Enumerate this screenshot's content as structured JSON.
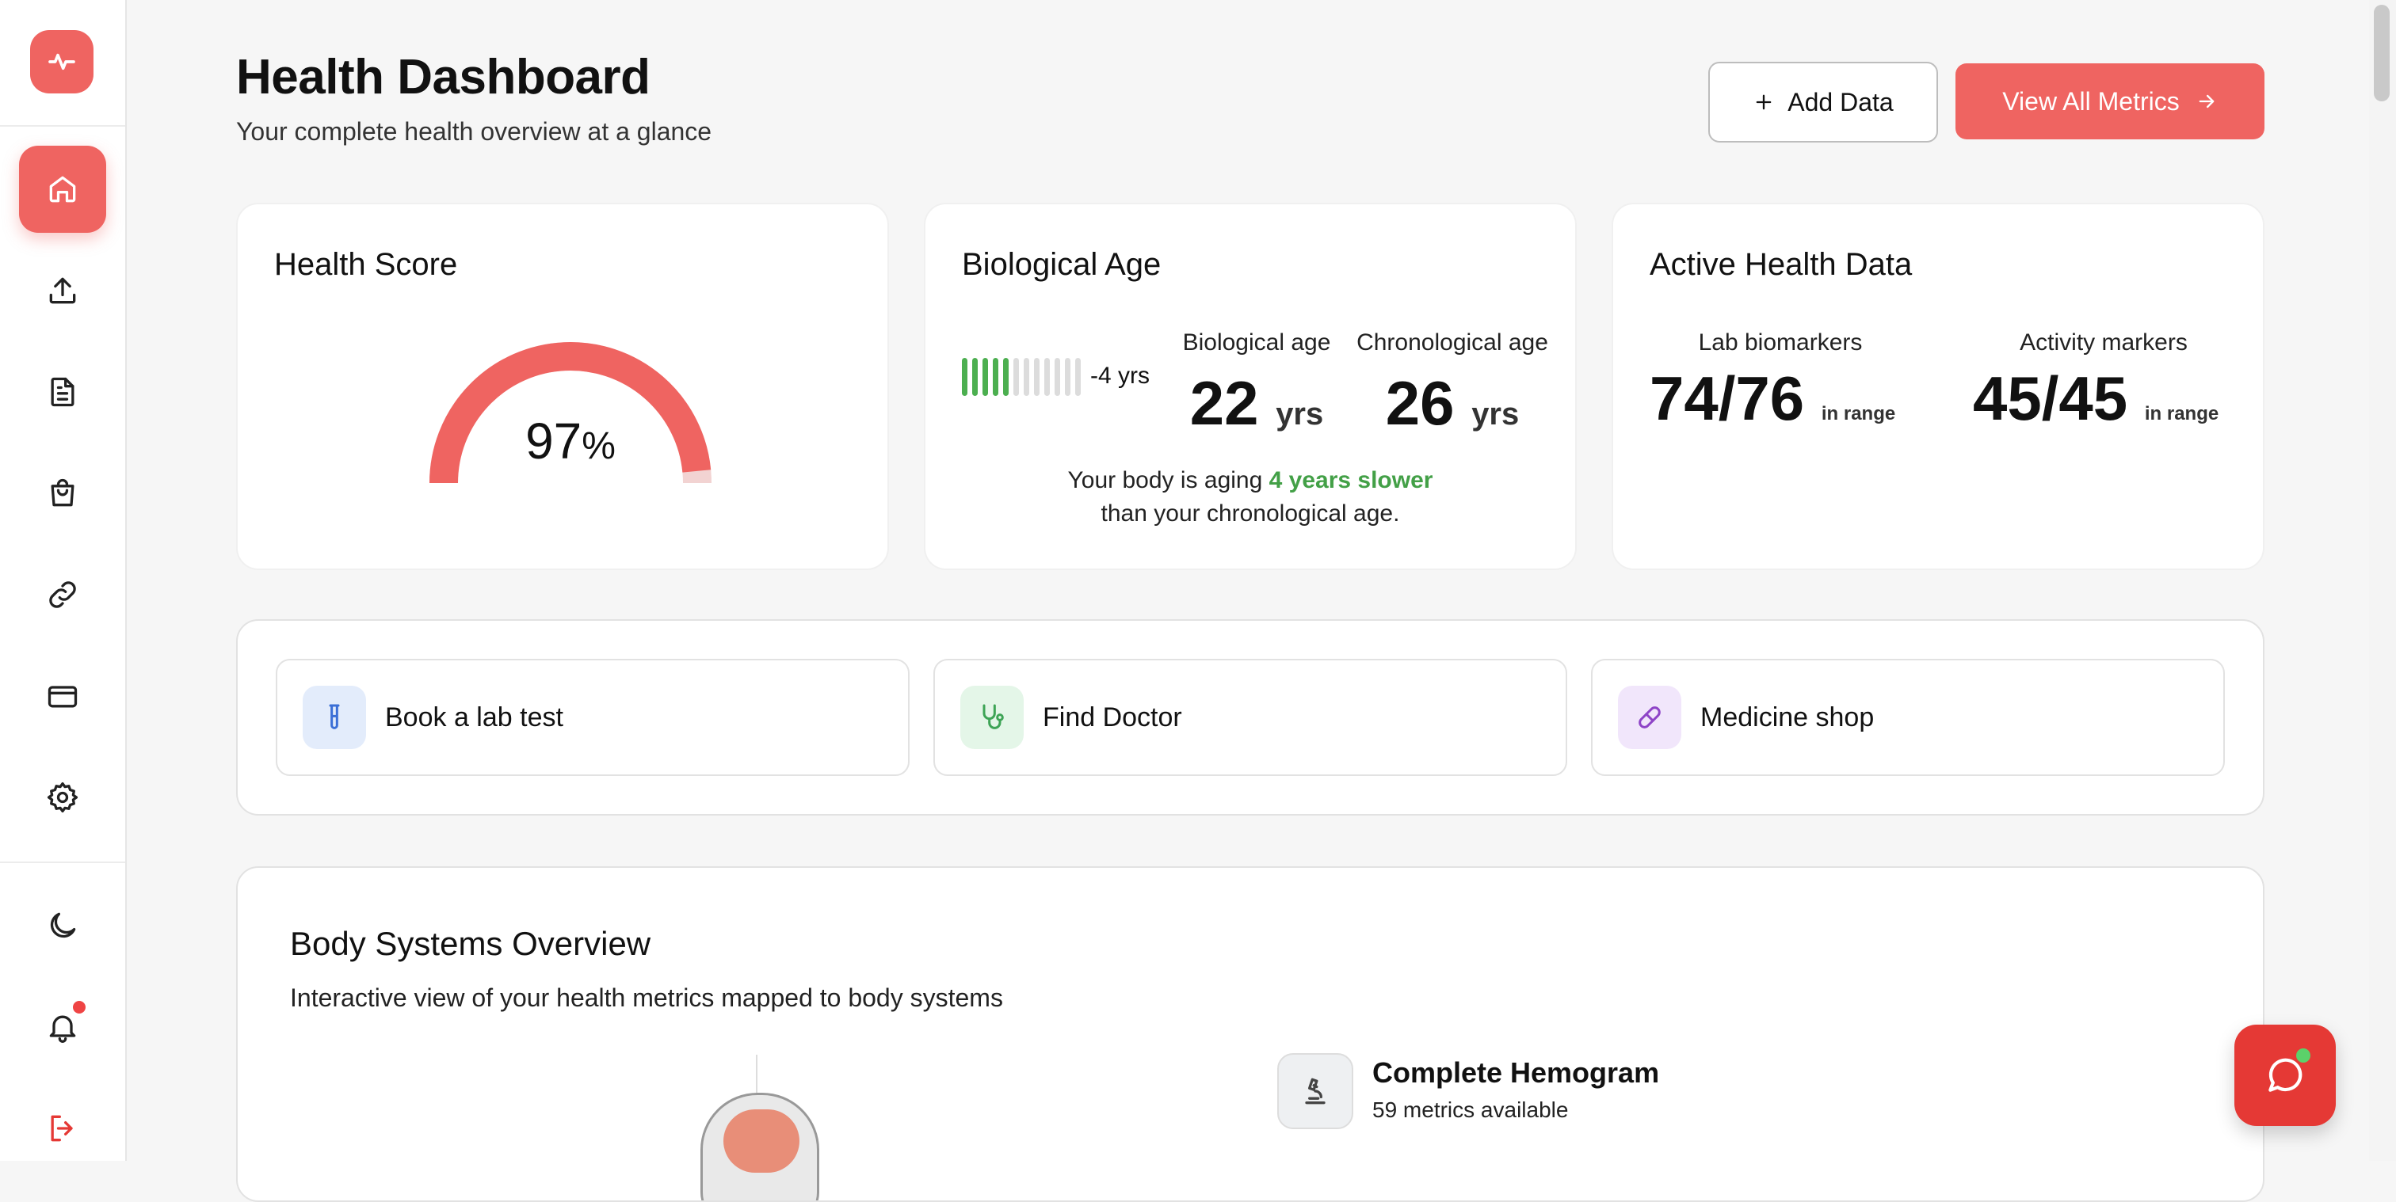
{
  "app": {
    "accent": "#ef6461"
  },
  "sidebar": {
    "logo_icon": "pulse-icon",
    "items": [
      {
        "name": "home",
        "icon": "home-icon",
        "active": true
      },
      {
        "name": "upload",
        "icon": "upload-icon"
      },
      {
        "name": "documents",
        "icon": "document-icon"
      },
      {
        "name": "shop",
        "icon": "shopping-bag-icon"
      },
      {
        "name": "links",
        "icon": "link-icon"
      },
      {
        "name": "billing",
        "icon": "credit-card-icon"
      },
      {
        "name": "settings",
        "icon": "gear-icon"
      }
    ],
    "bottom": [
      {
        "name": "theme",
        "icon": "moon-icon"
      },
      {
        "name": "notifications",
        "icon": "bell-icon",
        "has_badge": true
      },
      {
        "name": "logout",
        "icon": "logout-icon"
      }
    ]
  },
  "header": {
    "title": "Health Dashboard",
    "subtitle": "Your complete health overview at a glance",
    "add_label": "Add Data",
    "view_all_label": "View All Metrics"
  },
  "health_score": {
    "title": "Health Score",
    "value": "97",
    "unit": "%",
    "fill_fraction": 0.97
  },
  "biological_age": {
    "title": "Biological Age",
    "diff": "-4 yrs",
    "bars_total": 12,
    "bars_filled": 5,
    "bio_label": "Biological age",
    "bio_value": "22",
    "chrono_label": "Chronological age",
    "chrono_value": "26",
    "unit": "yrs",
    "aging_pre": "Your body is aging ",
    "aging_highlight": "4 years slower",
    "aging_post": " than your chronological age."
  },
  "active_data": {
    "title": "Active Health Data",
    "lab_label": "Lab biomarkers",
    "lab_value": "74/76",
    "activity_label": "Activity markers",
    "activity_value": "45/45",
    "in_range": "in range"
  },
  "actions": [
    {
      "label": "Book a lab test",
      "icon": "test-tube-icon",
      "bg": "#e3ecfb",
      "color": "#3b6fd6"
    },
    {
      "label": "Find Doctor",
      "icon": "stethoscope-icon",
      "bg": "#e4f6e8",
      "color": "#3ea456"
    },
    {
      "label": "Medicine shop",
      "icon": "pill-icon",
      "bg": "#f1e6fb",
      "color": "#8e44c7"
    }
  ],
  "systems": {
    "title": "Body Systems Overview",
    "subtitle": "Interactive view of your health metrics mapped to body systems",
    "panel_title": "Complete Hemogram",
    "panel_sub": "59 metrics available"
  }
}
